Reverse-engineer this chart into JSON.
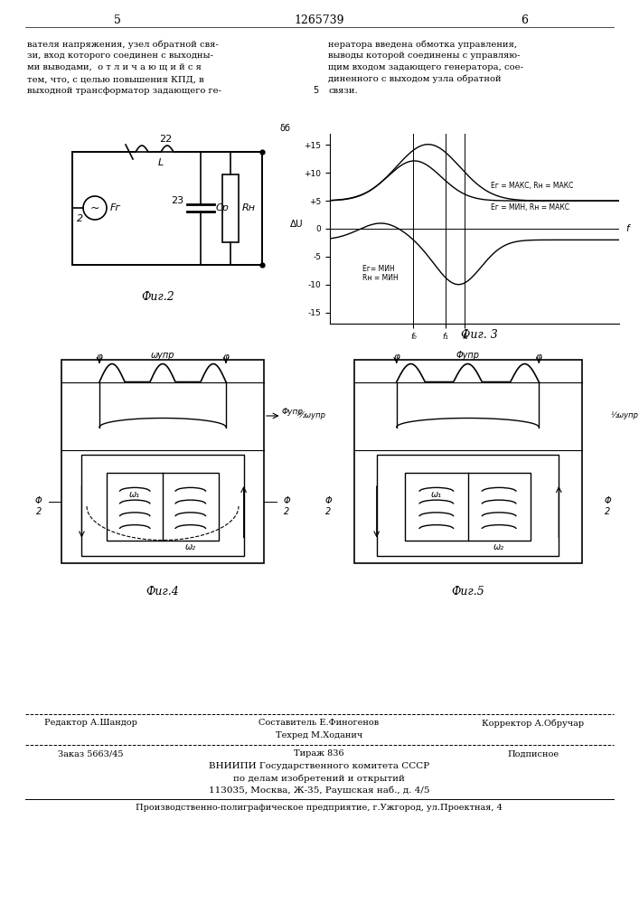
{
  "page_number_left": "5",
  "page_number_center": "1265739",
  "page_number_right": "6",
  "text_left_lines": [
    "вателя напряжения, узел обратной свя-",
    "зи, вход которого соединен с выходны-",
    "ми выводами,  о т л и ч а ю щ и й с я",
    "тем, что, с целью повышения КПД, в",
    "выходной трансформатор задающего ге-"
  ],
  "text_right_lines": [
    "нератора введена обмотка управления,",
    "выводы которой соединены с управляю-",
    "щим входом задающего генератора, сое-",
    "диненного с выходом узла обратной",
    "связи."
  ],
  "fig2_caption": "Фиг.2",
  "fig3_caption": "Фиг. 3",
  "fig4_caption": "Фиг.4",
  "fig5_caption": "Фиг.5",
  "footer_editor": "Редактор А.Шандор",
  "footer_composer": "Составитель Е.Финогенов",
  "footer_corrector": "Корректор А.Обручар",
  "footer_techred": "Техред М.Ходанич",
  "footer_order": "Заказ 5663/45",
  "footer_circulation": "Тираж 836",
  "footer_subscription": "Подписное",
  "footer_org1": "ВНИИПИ Государственного комитета СССР",
  "footer_org2": "по делам изобретений и открытий",
  "footer_address": "113035, Москва, Ж-35, Раушская наб., д. 4/5",
  "footer_printer": "Производственно-полиграфическое предприятие, г.Ужгород, ул.Проектная, 4",
  "bg_color": "#ffffff",
  "text_color": "#000000"
}
